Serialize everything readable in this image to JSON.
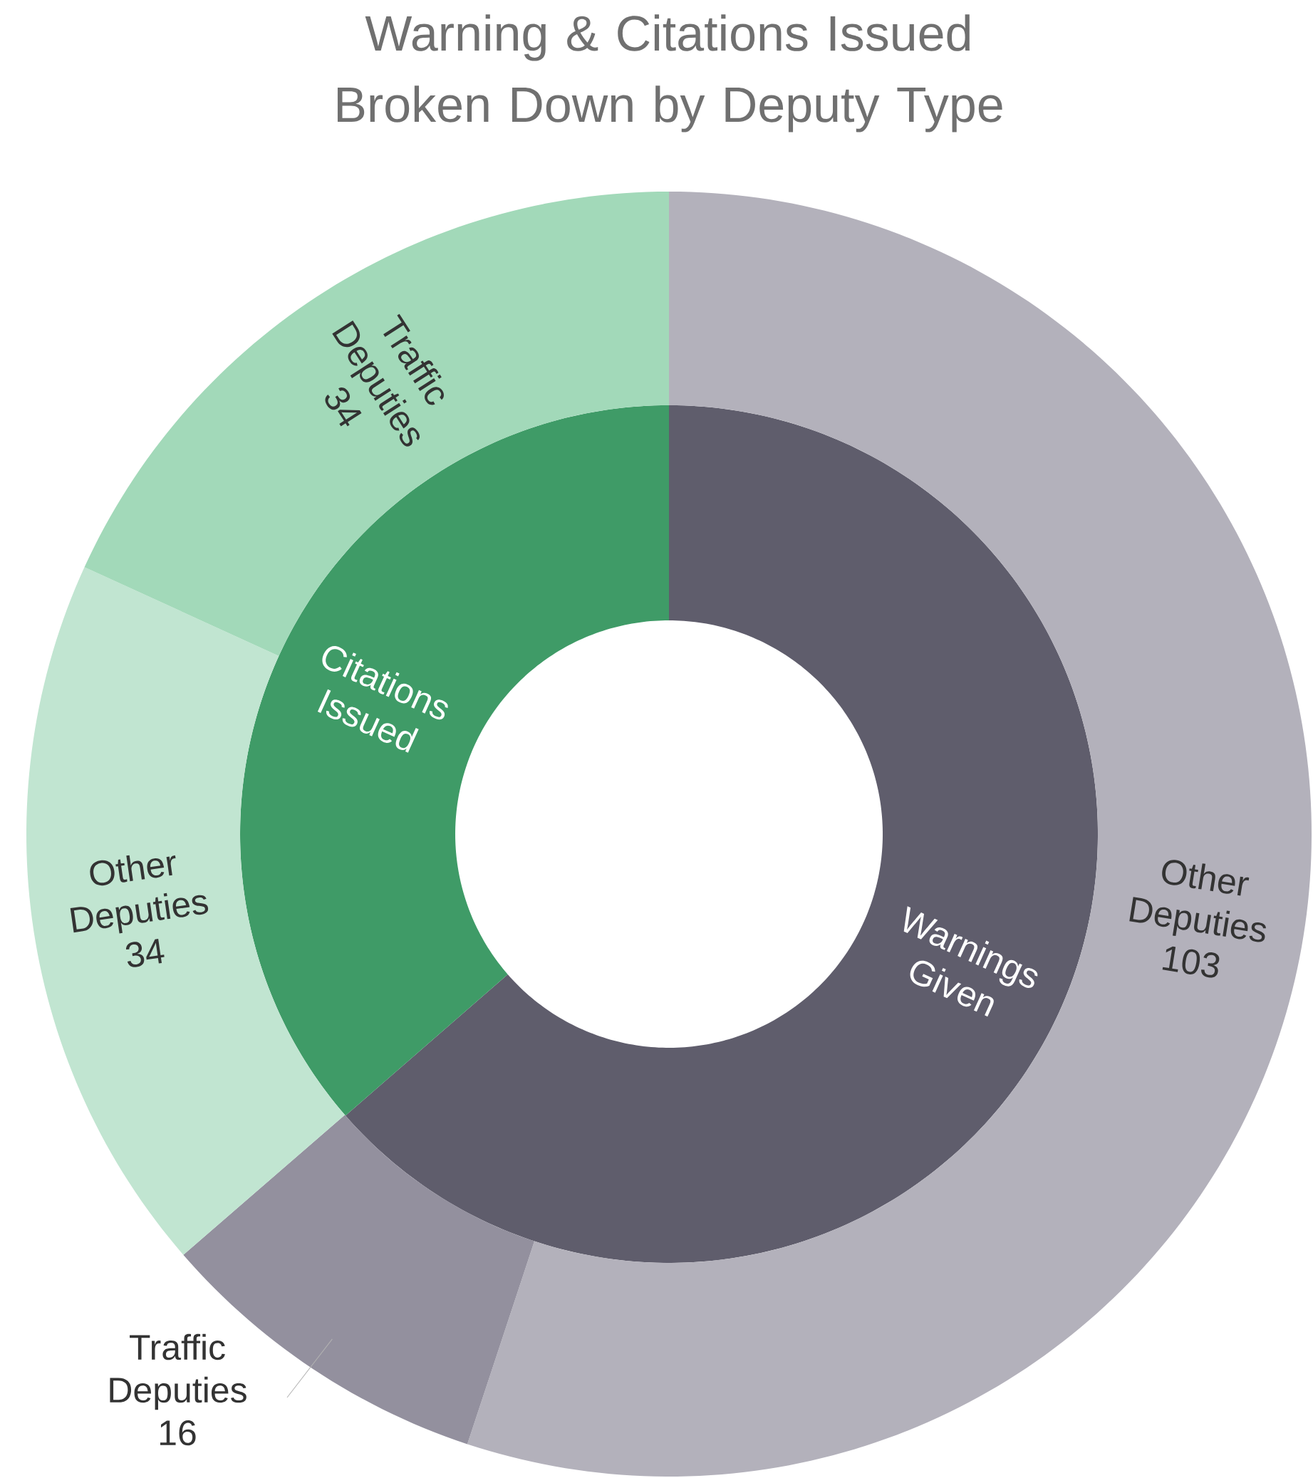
{
  "chart_data": [
    {
      "type": "donut",
      "title": "Warning & Citations Issued Broken Down by Deputy Type",
      "categories": [
        "Warnings Given",
        "Citations Issued"
      ],
      "values": [
        63.6,
        36.4
      ],
      "colors": [
        "#5f5d6c",
        "#3f9b67"
      ]
    },
    {
      "type": "donut",
      "categories": [
        "Other Deputies",
        "Traffic Deputies",
        "Other Deputies",
        "Traffic Deputies"
      ],
      "values": [
        103,
        16,
        34,
        34
      ],
      "colors": [
        "#b3b1bb",
        "#93909e",
        "#c1e5d1",
        "#a2d9b9"
      ],
      "data_labels": true
    }
  ]
}
